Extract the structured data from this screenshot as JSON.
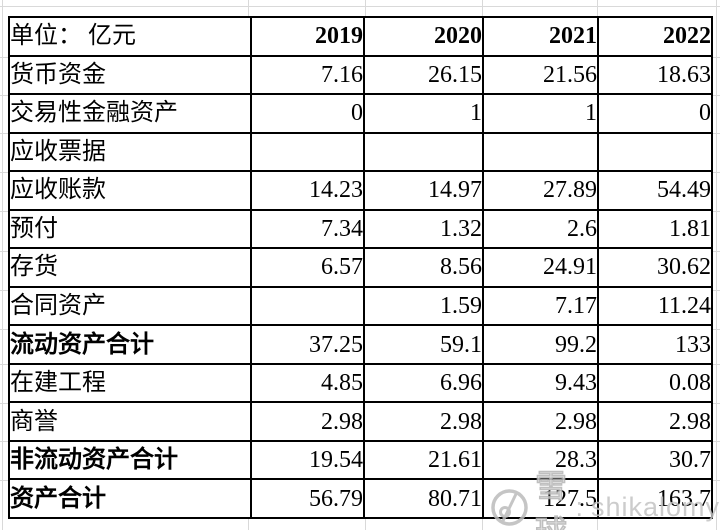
{
  "table": {
    "unit_label": "单位： 亿元",
    "years": [
      "2019",
      "2020",
      "2021",
      "2022"
    ],
    "rows": [
      {
        "label": "货币资金",
        "values": [
          "7.16",
          "26.15",
          "21.56",
          "18.63"
        ],
        "bold": false
      },
      {
        "label": "交易性金融资产",
        "values": [
          "0",
          "1",
          "1",
          "0"
        ],
        "bold": false
      },
      {
        "label": "应收票据",
        "values": [
          "",
          "",
          "",
          ""
        ],
        "bold": false
      },
      {
        "label": "应收账款",
        "values": [
          "14.23",
          "14.97",
          "27.89",
          "54.49"
        ],
        "bold": false
      },
      {
        "label": "预付",
        "values": [
          "7.34",
          "1.32",
          "2.6",
          "1.81"
        ],
        "bold": false
      },
      {
        "label": "存货",
        "values": [
          "6.57",
          "8.56",
          "24.91",
          "30.62"
        ],
        "bold": false
      },
      {
        "label": "合同资产",
        "values": [
          "",
          "1.59",
          "7.17",
          "11.24"
        ],
        "bold": false
      },
      {
        "label": "流动资产合计",
        "values": [
          "37.25",
          "59.1",
          "99.2",
          "133"
        ],
        "bold": true
      },
      {
        "label": "在建工程",
        "values": [
          "4.85",
          "6.96",
          "9.43",
          "0.08"
        ],
        "bold": false
      },
      {
        "label": "商誉",
        "values": [
          "2.98",
          "2.98",
          "2.98",
          "2.98"
        ],
        "bold": false
      },
      {
        "label": "非流动资产合计",
        "values": [
          "19.54",
          "21.61",
          "28.3",
          "30.7"
        ],
        "bold": true
      },
      {
        "label": "资产合计",
        "values": [
          "56.79",
          "80.71",
          "127.5",
          "163.7"
        ],
        "bold": true
      }
    ]
  },
  "watermark": {
    "logo": "xueqiu-snowball-logo",
    "brand": "雪球",
    "separator": ":",
    "username": "shikalomy"
  },
  "colors": {
    "border": "#000000",
    "text": "#000000",
    "gridline": "#d9d9d9",
    "watermark": "#bdbdbd",
    "background": "#ffffff"
  }
}
